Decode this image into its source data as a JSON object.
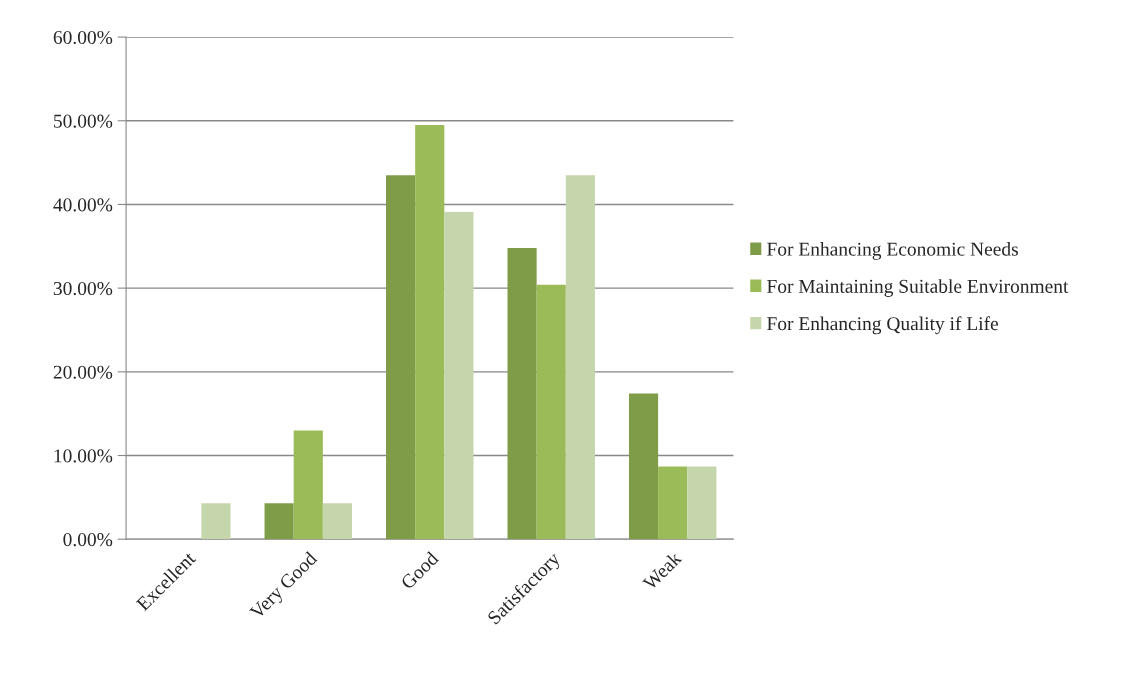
{
  "chart_data": {
    "type": "bar",
    "categories": [
      "Excellent",
      "Very Good",
      "Good",
      "Satisfactory",
      "Weak"
    ],
    "series": [
      {
        "name": "For Enhancing Economic Needs",
        "color": "#7f9c48",
        "values": [
          0,
          4.3,
          43.5,
          34.8,
          17.4
        ]
      },
      {
        "name": "For Maintaining Suitable Environment",
        "color": "#9bbb59",
        "values": [
          0,
          13.0,
          49.5,
          30.4,
          8.7
        ]
      },
      {
        "name": "For Enhancing Quality if Life",
        "color": "#c6d6ac",
        "values": [
          4.3,
          4.3,
          39.1,
          43.5,
          8.7
        ]
      }
    ],
    "ylim": [
      0,
      60
    ],
    "yticks": [
      {
        "value": 0,
        "label": "0.00%"
      },
      {
        "value": 10,
        "label": "10.00%"
      },
      {
        "value": 20,
        "label": "20.00%"
      },
      {
        "value": 30,
        "label": "30.00%"
      },
      {
        "value": 40,
        "label": "40.00%"
      },
      {
        "value": 50,
        "label": "50.00%"
      },
      {
        "value": 60,
        "label": "60.00%"
      }
    ],
    "grid": "y",
    "legend": "right"
  }
}
